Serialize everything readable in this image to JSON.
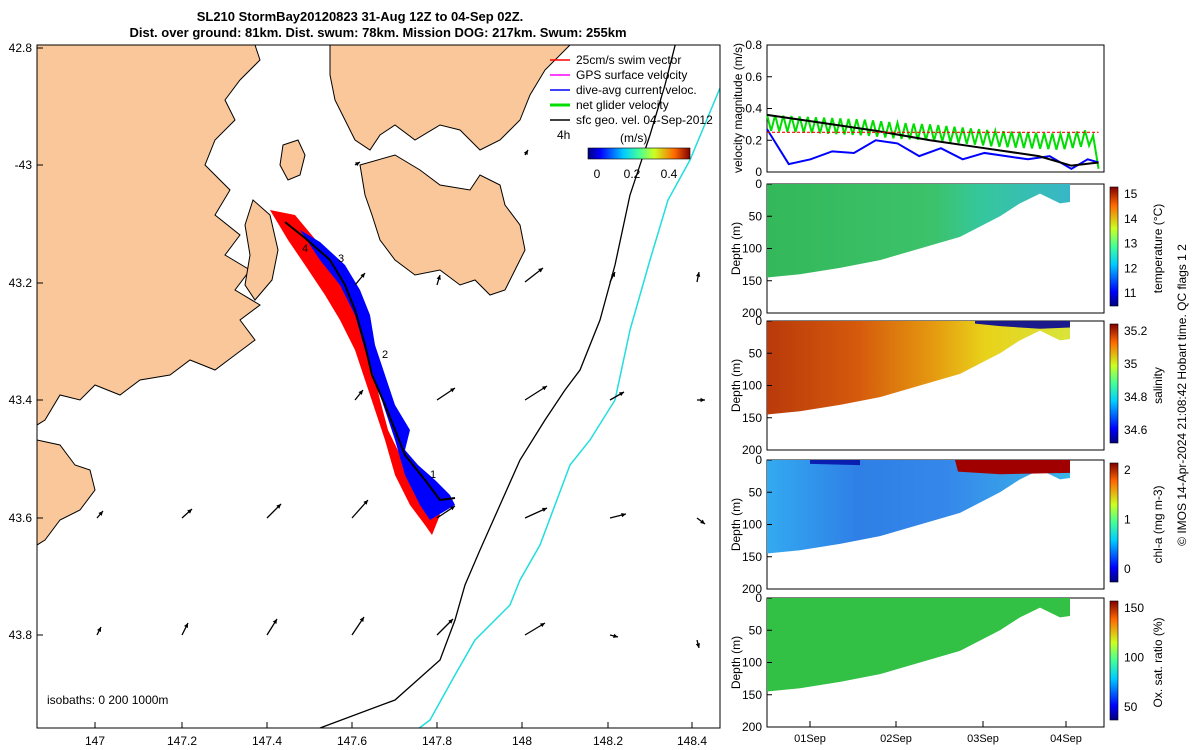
{
  "title_line1": "SL210 StormBay20120823 31-Aug 12Z to 04-Sep 02Z.",
  "title_line2": "Dist. over ground: 81km. Dist. swum: 78km. Mission DOG: 217km. Swum: 255km",
  "map": {
    "lon_ticks": [
      "147",
      "147.2",
      "147.4",
      "147.6",
      "147.8",
      "148",
      "148.2",
      "148.4"
    ],
    "lat_ticks": [
      "42.8",
      "-43",
      "43.2",
      "43.4",
      "43.6",
      "43.8"
    ],
    "isobaths_label": "isobaths: 0   200  1000m",
    "legend": [
      {
        "label": "25cm/s swim vector",
        "color": "#ff0000"
      },
      {
        "label": "GPS surface velocity",
        "color": "#ff00ff"
      },
      {
        "label": "dive-avg current veloc.",
        "color": "#0000ff"
      },
      {
        "label": "net glider velocity",
        "color": "#00dd00"
      },
      {
        "label": "sfc geo. vel. 04-Sep-2012",
        "color": "#000000"
      }
    ],
    "legend_extra": "4h",
    "colorbar_unit": "(m/s)",
    "colorbar_ticks": [
      "0",
      "0.2",
      "0.4"
    ],
    "track_labels": [
      "4",
      "3",
      "2",
      "1"
    ],
    "colors": {
      "land": "#f9c79a",
      "track_red": "#ff0000",
      "track_blue": "#0000ff",
      "isobath200": "#000000",
      "isobath1000": "#22dddd"
    }
  },
  "chart_data": [
    {
      "type": "line",
      "ylabel": "velocity magnitude (m/s)",
      "ylim": [
        0,
        0.8
      ],
      "yticks": [
        "0",
        "0.2",
        "0.4",
        "0.6",
        "0.8"
      ],
      "xlim": [
        0.5,
        3.6
      ],
      "series": [
        {
          "color": "#00dd00",
          "x": [
            0.5,
            0.8,
            1.1,
            1.4,
            1.7,
            2.0,
            2.3,
            2.6,
            2.9,
            3.2,
            3.5,
            3.55
          ],
          "y": [
            0.32,
            0.31,
            0.3,
            0.29,
            0.27,
            0.26,
            0.24,
            0.22,
            0.21,
            0.2,
            0.23,
            0.02
          ]
        },
        {
          "color": "#0000ff",
          "x": [
            0.5,
            0.7,
            0.9,
            1.1,
            1.3,
            1.5,
            1.7,
            1.9,
            2.1,
            2.3,
            2.5,
            2.7,
            2.9,
            3.1,
            3.3,
            3.45,
            3.55
          ],
          "y": [
            0.27,
            0.05,
            0.08,
            0.13,
            0.12,
            0.2,
            0.18,
            0.1,
            0.15,
            0.08,
            0.12,
            0.1,
            0.08,
            0.1,
            0.02,
            0.08,
            0.06
          ]
        },
        {
          "color": "#000000",
          "x": [
            0.5,
            1.0,
            1.5,
            2.0,
            2.5,
            3.0,
            3.3,
            3.55
          ],
          "y": [
            0.36,
            0.31,
            0.26,
            0.2,
            0.15,
            0.1,
            0.04,
            0.06
          ]
        },
        {
          "color": "#ff0000",
          "x": [
            0.5,
            3.55
          ],
          "y": [
            0.25,
            0.25
          ]
        }
      ]
    },
    {
      "type": "heatmap",
      "ylabel": "Depth (m)",
      "clabel": "temperature (°C)",
      "ylim": [
        0,
        200
      ],
      "yticks": [
        "0",
        "50",
        "100",
        "150",
        "200"
      ],
      "cticks": [
        "15",
        "14",
        "13",
        "12",
        "11"
      ]
    },
    {
      "type": "heatmap",
      "ylabel": "Depth (m)",
      "clabel": "salinity",
      "ylim": [
        0,
        200
      ],
      "yticks": [
        "0",
        "50",
        "100",
        "150",
        "200"
      ],
      "cticks": [
        "35.2",
        "35",
        "34.8",
        "34.6"
      ]
    },
    {
      "type": "heatmap",
      "ylabel": "Depth (m)",
      "clabel": "chl-a (mg m-3)",
      "ylim": [
        0,
        200
      ],
      "yticks": [
        "0",
        "50",
        "100",
        "150",
        "200"
      ],
      "cticks": [
        "2",
        "1",
        "0"
      ]
    },
    {
      "type": "heatmap",
      "ylabel": "Depth (m)",
      "clabel": "Ox. sat. ratio (%)",
      "ylim": [
        0,
        200
      ],
      "yticks": [
        "0",
        "50",
        "100",
        "150",
        "200"
      ],
      "cticks": [
        "150",
        "100",
        "50"
      ]
    }
  ],
  "time_ticks": [
    "01Sep",
    "02Sep",
    "03Sep",
    "04Sep"
  ],
  "side_note": "© IMOS 14-Apr-2024 21:08:42 Hobart time. QC flags 1  2"
}
